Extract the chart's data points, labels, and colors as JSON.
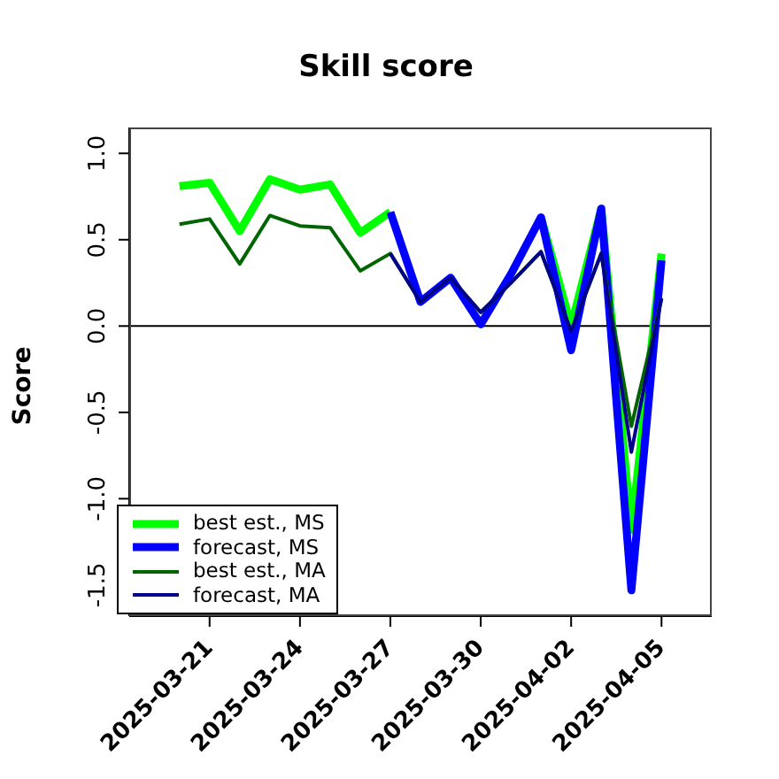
{
  "chart_data": {
    "type": "line",
    "title": "Skill score",
    "ylabel": "Score",
    "x": [
      "2025-03-20",
      "2025-03-21",
      "2025-03-22",
      "2025-03-23",
      "2025-03-24",
      "2025-03-25",
      "2025-03-26",
      "2025-03-27",
      "2025-03-28",
      "2025-03-29",
      "2025-03-30",
      "2025-03-31",
      "2025-04-01",
      "2025-04-02",
      "2025-04-03",
      "2025-04-04",
      "2025-04-05"
    ],
    "series": [
      {
        "name": "best est., MS",
        "color": "#00ff00",
        "values": [
          0.81,
          0.83,
          0.55,
          0.85,
          0.79,
          0.82,
          0.54,
          0.66,
          null,
          null,
          null,
          null,
          0.63,
          0.0,
          0.68,
          -1.18,
          0.42
        ]
      },
      {
        "name": "forecast, MS",
        "color": "#0000ff",
        "values": [
          null,
          null,
          null,
          null,
          null,
          null,
          null,
          0.66,
          0.14,
          0.28,
          0.01,
          0.3,
          0.63,
          -0.14,
          0.68,
          -1.53,
          0.38
        ]
      },
      {
        "name": "best est., MA",
        "color": "#006400",
        "values": [
          0.59,
          0.62,
          0.36,
          0.64,
          0.58,
          0.57,
          0.32,
          0.42,
          0.14,
          0.28,
          0.08,
          0.25,
          0.43,
          -0.03,
          0.42,
          -0.58,
          0.16
        ]
      },
      {
        "name": "forecast, MA",
        "color": "#00008b",
        "values": [
          null,
          null,
          null,
          null,
          null,
          null,
          null,
          0.42,
          0.14,
          0.28,
          0.08,
          0.25,
          0.43,
          -0.03,
          0.42,
          -0.73,
          0.16
        ]
      }
    ],
    "xlim": [
      "2025-03-18T08:00",
      "2025-04-06T16:00"
    ],
    "xticks": [
      {
        "value": "2025-03-21",
        "label": "2025-03-21"
      },
      {
        "value": "2025-03-24",
        "label": "2025-03-24"
      },
      {
        "value": "2025-03-27",
        "label": "2025-03-27"
      },
      {
        "value": "2025-03-30",
        "label": "2025-03-30"
      },
      {
        "value": "2025-04-02",
        "label": "2025-04-02"
      },
      {
        "value": "2025-04-05",
        "label": "2025-04-05"
      }
    ],
    "ylim": [
      -1.68,
      1.15
    ],
    "yticks": [
      {
        "value": -1.5,
        "label": "-1.5"
      },
      {
        "value": -1,
        "label": "-1.0"
      },
      {
        "value": -0.5,
        "label": "-0.5"
      },
      {
        "value": 0,
        "label": "0.0"
      },
      {
        "value": 0.5,
        "label": "0.5"
      },
      {
        "value": 1,
        "label": "1.0"
      }
    ],
    "ref_lines": [
      {
        "axis": "y",
        "value": 0,
        "color": "#000000"
      }
    ],
    "legend": "bottom left",
    "grid": false,
    "marker": "none",
    "line_style": "solid"
  }
}
